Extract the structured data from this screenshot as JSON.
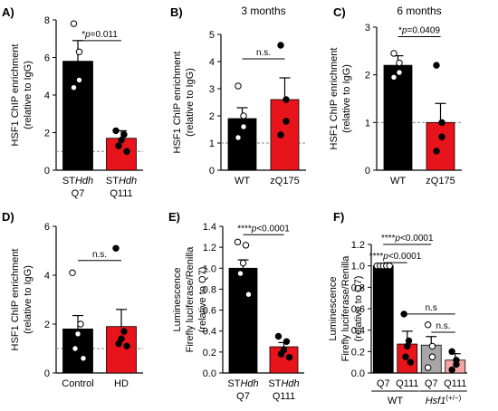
{
  "colors": {
    "black_bar": "#000000",
    "red_bar": "#e8141b",
    "gray_bar": "#a6a6a6",
    "pink_bar": "#f5a3a3",
    "ref_line": "#888888"
  },
  "chart_data": [
    {
      "id": "A",
      "panel_label": "A)",
      "type": "bar",
      "title": "",
      "ylabel_lines": [
        "HSF1 ChIP enrichment",
        "(relative to IgG)"
      ],
      "ylim": [
        0,
        8
      ],
      "yticks": [
        0,
        2,
        4,
        6,
        8
      ],
      "ytick_labels": [
        "0",
        "2",
        "4",
        "6",
        "8"
      ],
      "ref_line": 1,
      "categories": [
        {
          "line1_prefix": "ST",
          "line1_italic": "Hdh",
          "line2": "Q7",
          "value": 5.8,
          "err": 1.1,
          "color": "#000000",
          "points": [
            {
              "v": 7.8,
              "o": true
            },
            {
              "v": 6.3,
              "o": true
            },
            {
              "v": 4.8,
              "o": true
            },
            {
              "v": 4.4,
              "o": true
            }
          ]
        },
        {
          "line1_prefix": "ST",
          "line1_italic": "Hdh",
          "line2": "Q111",
          "value": 1.7,
          "err": 0.4,
          "color": "#e8141b",
          "points": [
            {
              "v": 2.1,
              "o": false
            },
            {
              "v": 1.9,
              "o": false
            },
            {
              "v": 1.6,
              "o": false
            },
            {
              "v": 1.3,
              "o": false
            },
            {
              "v": 1.0,
              "o": false
            }
          ]
        }
      ],
      "comparisons": [
        {
          "from": 0,
          "to": 1,
          "y": 6.9,
          "stars": "",
          "p_prefix": "*",
          "p_text": "p",
          "p_suffix": "=0.011"
        }
      ]
    },
    {
      "id": "B",
      "panel_label": "B)",
      "type": "bar",
      "title": "3 months",
      "ylabel_lines": [
        "HSF1 ChIP enrichment",
        "(relative to IgG)"
      ],
      "ylim": [
        0,
        5
      ],
      "yticks": [
        0,
        1,
        2,
        3,
        4,
        5
      ],
      "ytick_labels": [
        "0",
        "1",
        "2",
        "3",
        "4",
        "5"
      ],
      "ref_line": 1,
      "categories": [
        {
          "line1": "WT",
          "value": 1.9,
          "err": 0.4,
          "color": "#000000",
          "points": [
            {
              "v": 3.1,
              "o": true
            },
            {
              "v": 2.0,
              "o": true
            },
            {
              "v": 1.6,
              "o": true
            },
            {
              "v": 1.2,
              "o": true
            }
          ]
        },
        {
          "line1": "zQ175",
          "value": 2.6,
          "err": 0.8,
          "color": "#e8141b",
          "points": [
            {
              "v": 4.6,
              "o": false
            },
            {
              "v": 2.6,
              "o": false
            },
            {
              "v": 1.8,
              "o": false
            },
            {
              "v": 1.3,
              "o": false
            }
          ]
        }
      ],
      "comparisons": [
        {
          "from": 0,
          "to": 1,
          "y": 4.1,
          "label": "n.s."
        }
      ]
    },
    {
      "id": "C",
      "panel_label": "C)",
      "type": "bar",
      "title": "6 months",
      "ylabel_lines": [
        "HSF1 ChIP enrichment",
        "(relative to IgG)"
      ],
      "ylim": [
        0,
        3
      ],
      "yticks": [
        0,
        1,
        2,
        3
      ],
      "ytick_labels": [
        "0",
        "1",
        "2",
        "3"
      ],
      "ref_line": 1,
      "categories": [
        {
          "line1": "WT",
          "value": 2.2,
          "err": 0.2,
          "color": "#000000",
          "points": [
            {
              "v": 2.45,
              "o": true
            },
            {
              "v": 2.25,
              "o": true
            },
            {
              "v": 2.05,
              "o": true
            },
            {
              "v": 1.95,
              "o": true
            }
          ]
        },
        {
          "line1": "zQ175",
          "value": 1.0,
          "err": 0.4,
          "color": "#e8141b",
          "points": [
            {
              "v": 2.2,
              "o": false
            },
            {
              "v": 1.0,
              "o": false
            },
            {
              "v": 0.7,
              "o": false
            },
            {
              "v": 0.4,
              "o": false
            }
          ]
        }
      ],
      "comparisons": [
        {
          "from": 0,
          "to": 1,
          "y": 2.8,
          "stars": "",
          "p_prefix": "*",
          "p_text": "p",
          "p_suffix": "=0.0409"
        }
      ]
    },
    {
      "id": "D",
      "panel_label": "D)",
      "type": "bar",
      "title": "",
      "ylabel_lines": [
        "HSF1 ChIP enrichment",
        "(relative to IgG)"
      ],
      "ylim": [
        0,
        6
      ],
      "yticks": [
        0,
        2,
        4,
        6
      ],
      "ytick_labels": [
        "0",
        "2",
        "4",
        "6"
      ],
      "ref_line": 1,
      "categories": [
        {
          "line1": "Control",
          "value": 1.8,
          "err": 0.55,
          "color": "#000000",
          "points": [
            {
              "v": 4.1,
              "o": true
            },
            {
              "v": 2.0,
              "o": true
            },
            {
              "v": 1.6,
              "o": true
            },
            {
              "v": 1.0,
              "o": true
            },
            {
              "v": 0.6,
              "o": true
            }
          ]
        },
        {
          "line1": "HD",
          "value": 1.9,
          "err": 0.7,
          "color": "#e8141b",
          "points": [
            {
              "v": 5.1,
              "o": false
            },
            {
              "v": 1.7,
              "o": false
            },
            {
              "v": 1.4,
              "o": false
            },
            {
              "v": 1.2,
              "o": false
            },
            {
              "v": 1.1,
              "o": false
            }
          ]
        }
      ],
      "comparisons": [
        {
          "from": 0,
          "to": 1,
          "y": 4.6,
          "label": "n.s."
        }
      ]
    },
    {
      "id": "E",
      "panel_label": "E)",
      "type": "bar",
      "title": "",
      "ylabel_lines": [
        "Luminescence",
        "Firefly luciferase/Renilla",
        "(relative to Q7)"
      ],
      "ylim": [
        0,
        1.4
      ],
      "yticks": [
        0,
        0.2,
        0.4,
        0.6,
        0.8,
        1.0,
        1.2,
        1.4
      ],
      "ytick_labels": [
        "0.0",
        "0.2",
        "0.4",
        "0.6",
        "0.8",
        "1.0",
        "1.2",
        "1.4"
      ],
      "ref_line": null,
      "categories": [
        {
          "line1_prefix": "ST",
          "line1_italic": "Hdh",
          "line2": "Q7",
          "value": 1.0,
          "err": 0.08,
          "color": "#000000",
          "points": [
            {
              "v": 1.25,
              "o": true
            },
            {
              "v": 1.22,
              "o": true
            },
            {
              "v": 1.05,
              "o": true
            },
            {
              "v": 0.95,
              "o": true
            },
            {
              "v": 0.75,
              "o": true
            }
          ]
        },
        {
          "line1_prefix": "ST",
          "line1_italic": "Hdh",
          "line2": "Q111",
          "value": 0.25,
          "err": 0.04,
          "color": "#e8141b",
          "points": [
            {
              "v": 0.35,
              "o": false
            },
            {
              "v": 0.3,
              "o": false
            },
            {
              "v": 0.22,
              "o": false
            },
            {
              "v": 0.18,
              "o": false
            },
            {
              "v": 0.15,
              "o": false
            }
          ]
        }
      ],
      "comparisons": [
        {
          "from": 0,
          "to": 1,
          "y": 1.32,
          "stars": "****",
          "p_prefix": "",
          "p_text": "p",
          "p_suffix": "<0.0001"
        }
      ]
    },
    {
      "id": "F",
      "panel_label": "F)",
      "type": "bar",
      "title": "",
      "ylabel_lines": [
        "Luminescence",
        "Firefly luciferase/Renilla",
        "(relative to Q7)"
      ],
      "ylim": [
        0,
        1.2
      ],
      "yticks": [
        0,
        0.2,
        0.4,
        0.6,
        0.8,
        1.0,
        1.2
      ],
      "ytick_labels": [
        "0.0",
        "0.2",
        "0.4",
        "0.6",
        "0.8",
        "1.0",
        "1.2"
      ],
      "ref_line": null,
      "categories": [
        {
          "line1": "Q7",
          "value": 1.0,
          "err": 0.0,
          "color": "#000000",
          "points": [
            {
              "v": 1.0,
              "o": true
            },
            {
              "v": 1.0,
              "o": true
            },
            {
              "v": 1.0,
              "o": true
            },
            {
              "v": 1.0,
              "o": true
            },
            {
              "v": 1.0,
              "o": true
            }
          ]
        },
        {
          "line1": "Q111",
          "value": 0.27,
          "err": 0.12,
          "color": "#e8141b",
          "points": [
            {
              "v": 0.55,
              "o": false
            },
            {
              "v": 0.3,
              "o": false
            },
            {
              "v": 0.25,
              "o": false
            },
            {
              "v": 0.15,
              "o": false
            },
            {
              "v": 0.1,
              "o": false
            }
          ]
        },
        {
          "line1": "Q7",
          "value": 0.26,
          "err": 0.08,
          "color": "#a6a6a6",
          "points": [
            {
              "v": 0.45,
              "o": true
            },
            {
              "v": 0.25,
              "o": true
            },
            {
              "v": 0.15,
              "o": true
            },
            {
              "v": 0.05,
              "o": true
            }
          ]
        },
        {
          "line1": "Q111",
          "value": 0.12,
          "err": 0.06,
          "color": "#f5a3a3",
          "points": [
            {
              "v": 0.2,
              "o": false
            },
            {
              "v": 0.12,
              "o": false
            },
            {
              "v": 0.08,
              "o": false
            },
            {
              "v": 0.03,
              "o": false
            }
          ]
        }
      ],
      "groups": [
        {
          "from": 0,
          "to": 1,
          "label": "WT",
          "italic": false,
          "suffix": ""
        },
        {
          "from": 2,
          "to": 3,
          "label": "Hsf1",
          "italic": true,
          "suffix": "(+/−)"
        }
      ],
      "comparisons": [
        {
          "from": 0,
          "to": 2,
          "y": 1.2,
          "stars": "****",
          "p_prefix": "",
          "p_text": "p",
          "p_suffix": "<0.0001"
        },
        {
          "from": 0,
          "to": 1,
          "y": 1.03,
          "stars": "****",
          "p_prefix": "",
          "p_text": "p",
          "p_suffix": "<0.0001"
        },
        {
          "from": 1,
          "to": 3,
          "y": 0.55,
          "label": "n.s"
        },
        {
          "from": 2,
          "to": 3,
          "y": 0.38,
          "label": "n.s."
        }
      ]
    }
  ]
}
